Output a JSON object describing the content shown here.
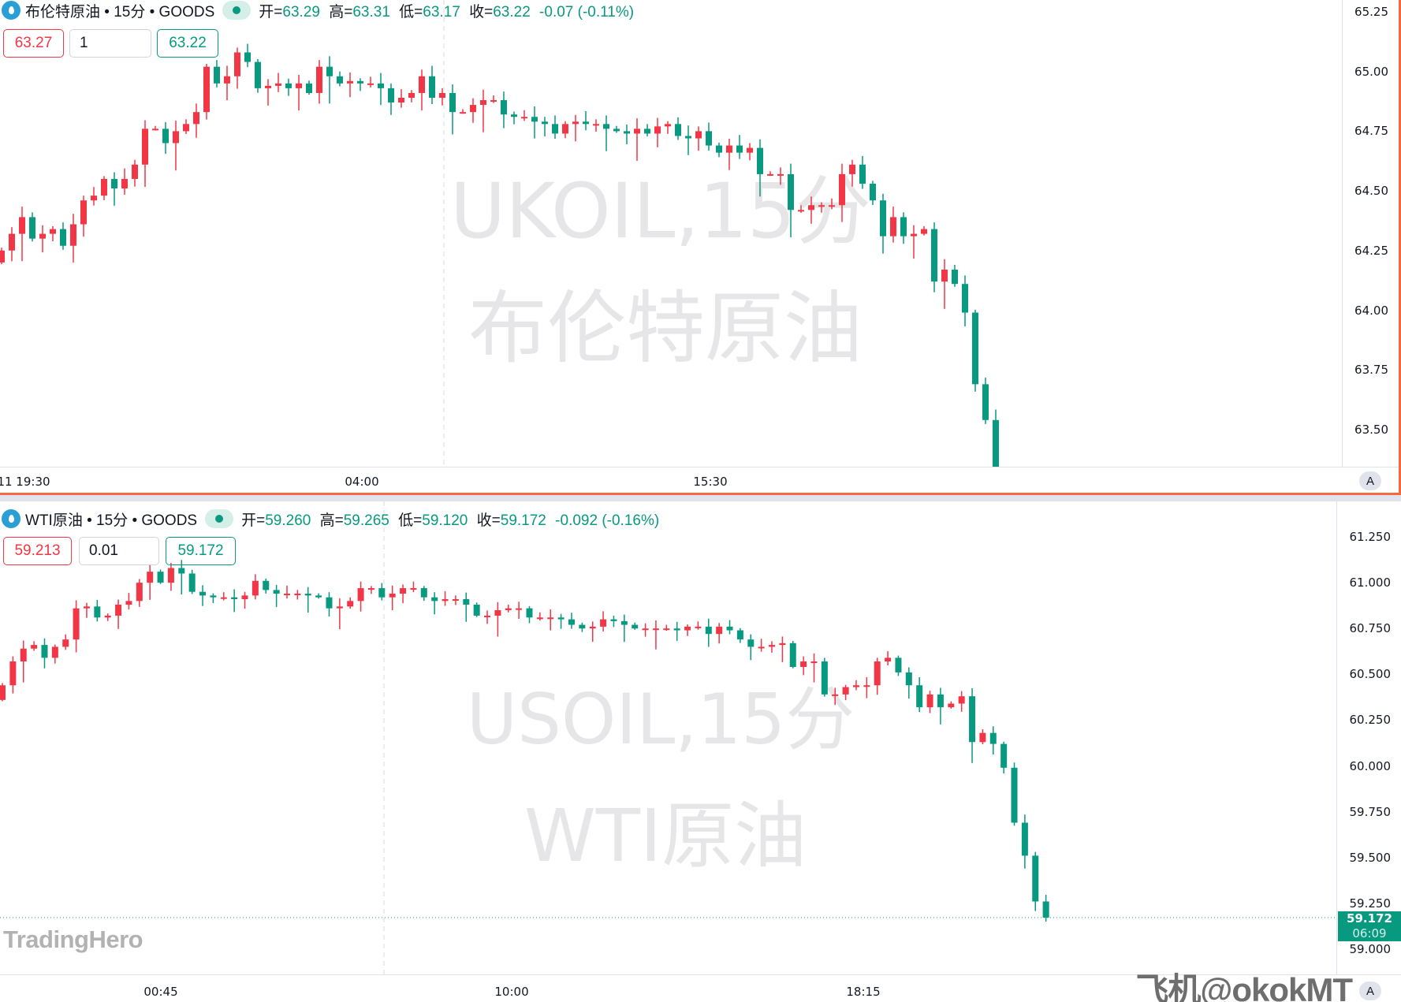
{
  "top": {
    "symbol_title": "布伦特原油 • 15分 • GOODS",
    "ohlc": {
      "open_label": "开=",
      "open": "63.29",
      "high_label": "高=",
      "high": "63.31",
      "low_label": "低=",
      "low": "63.17",
      "close_label": "收=",
      "close": "63.22",
      "change": "-0.07 (-0.11%)"
    },
    "sell_price": "63.27",
    "quantity": "1",
    "buy_price": "63.22",
    "watermark_line1": "UKOIL,15分",
    "watermark_line2": "布伦特原油",
    "price_ticks": [
      "65.25",
      "65.00",
      "64.75",
      "64.50",
      "64.25",
      "64.00",
      "63.75",
      "63.50"
    ],
    "time_labels": [
      "11 19:30",
      "04:00",
      "15:30"
    ],
    "auto_scale_label": "A"
  },
  "bottom": {
    "symbol_title": "WTI原油 • 15分 • GOODS",
    "ohlc": {
      "open_label": "开=",
      "open": "59.260",
      "high_label": "高=",
      "high": "59.265",
      "low_label": "低=",
      "low": "59.120",
      "close_label": "收=",
      "close": "59.172",
      "change": "-0.092 (-0.16%)"
    },
    "sell_price": "59.213",
    "quantity": "0.01",
    "buy_price": "59.172",
    "watermark_line1": "USOIL,15分",
    "watermark_line2": "WTI原油",
    "price_ticks": [
      "61.250",
      "61.000",
      "60.750",
      "60.500",
      "60.250",
      "60.000",
      "59.750",
      "59.500",
      "59.250",
      "59.000"
    ],
    "time_labels": [
      "00:45",
      "10:00",
      "18:15"
    ],
    "last_price_label": "59.172",
    "countdown": "06:09",
    "auto_scale_label": "A"
  },
  "logo_text": "TradingHero",
  "overlay_watermark": "飞机@okokMT",
  "colors": {
    "up": "#f23645",
    "down": "#089981",
    "active_border": "#f26a3d"
  },
  "chart_data": [
    {
      "type": "candlestick",
      "title": "UKOIL,15分",
      "ylim": [
        63.4,
        65.3
      ],
      "up_color": "#f23645",
      "down_color": "#089981",
      "first_open": 64.2,
      "closes": [
        64.25,
        64.32,
        64.39,
        64.3,
        64.32,
        64.34,
        64.27,
        64.36,
        64.46,
        64.48,
        64.55,
        64.51,
        64.55,
        64.61,
        64.76,
        64.76,
        64.7,
        64.75,
        64.78,
        64.83,
        65.02,
        64.95,
        64.98,
        65.08,
        65.04,
        64.93,
        64.94,
        64.95,
        64.93,
        64.95,
        64.91,
        65.02,
        64.98,
        64.95,
        64.96,
        64.95,
        64.95,
        64.93,
        64.87,
        64.89,
        64.91,
        64.98,
        64.89,
        64.91,
        64.83,
        64.83,
        64.86,
        64.88,
        64.88,
        64.82,
        64.81,
        64.81,
        64.79,
        64.78,
        64.74,
        64.78,
        64.79,
        64.78,
        64.78,
        64.76,
        64.75,
        64.74,
        64.76,
        64.74,
        64.77,
        64.78,
        64.73,
        64.72,
        64.75,
        64.69,
        64.66,
        64.69,
        64.66,
        64.68,
        64.57,
        64.57,
        64.57,
        64.42,
        64.42,
        64.44,
        64.44,
        64.44,
        64.57,
        64.61,
        64.53,
        64.46,
        64.31,
        64.39,
        64.31,
        64.32,
        64.34,
        64.12,
        64.17,
        64.11,
        63.99,
        63.69,
        63.54,
        63.22
      ]
    },
    {
      "type": "candlestick",
      "title": "USOIL,15分",
      "ylim": [
        58.95,
        61.35
      ],
      "up_color": "#f23645",
      "down_color": "#089981",
      "first_open": 60.36,
      "closes": [
        60.44,
        60.57,
        60.64,
        60.66,
        60.59,
        60.65,
        60.69,
        60.86,
        60.87,
        60.81,
        60.82,
        60.88,
        60.9,
        61.0,
        61.06,
        61.0,
        61.08,
        61.05,
        60.95,
        60.93,
        60.92,
        60.92,
        60.91,
        60.93,
        61.01,
        60.96,
        60.94,
        60.94,
        60.94,
        60.93,
        60.92,
        60.86,
        60.87,
        60.9,
        60.97,
        60.97,
        60.92,
        60.94,
        60.97,
        60.97,
        60.92,
        60.9,
        60.91,
        60.91,
        60.88,
        60.82,
        60.82,
        60.85,
        60.86,
        60.86,
        60.81,
        60.81,
        60.81,
        60.8,
        60.77,
        60.75,
        60.76,
        60.8,
        60.79,
        60.77,
        60.75,
        60.75,
        60.75,
        60.75,
        60.74,
        60.76,
        60.76,
        60.72,
        60.76,
        60.74,
        60.69,
        60.65,
        60.65,
        60.66,
        60.67,
        60.54,
        60.57,
        60.57,
        60.39,
        60.39,
        60.43,
        60.44,
        60.44,
        60.57,
        60.59,
        60.51,
        60.44,
        60.32,
        60.39,
        60.32,
        60.34,
        60.38,
        60.13,
        60.18,
        60.12,
        59.99,
        59.69,
        59.51,
        59.26,
        59.172
      ]
    }
  ]
}
